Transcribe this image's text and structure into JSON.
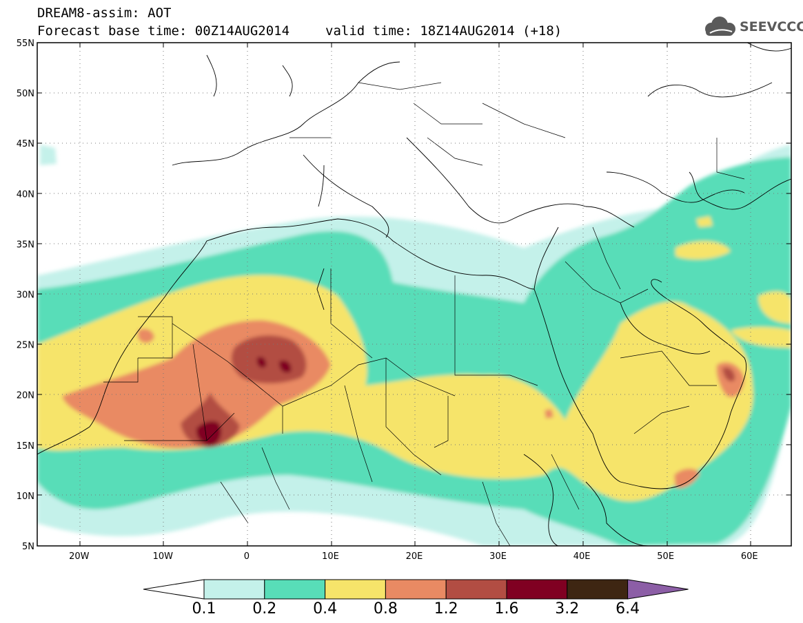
{
  "header": {
    "title_line1": "DREAM8-assim: AOT",
    "base_time": "Forecast base time: 00Z14AUG2014",
    "valid_time": "valid time: 18Z14AUG2014 (+18)",
    "logo_text": "SEEVCCC",
    "logo_icon": "cloud-icon"
  },
  "map": {
    "lon_range": [
      -25,
      65
    ],
    "lat_range": [
      5,
      55
    ],
    "lat_ticks": [
      "55N",
      "50N",
      "45N",
      "40N",
      "35N",
      "30N",
      "25N",
      "20N",
      "15N",
      "10N",
      "5N"
    ],
    "lon_ticks": [
      "20W",
      "10W",
      "0",
      "10E",
      "20E",
      "30E",
      "40E",
      "50E",
      "60E"
    ],
    "grid": "dotted"
  },
  "colorbar": {
    "labels": [
      "0.1",
      "0.2",
      "0.4",
      "0.8",
      "1.2",
      "1.6",
      "3.2",
      "6.4"
    ],
    "colors": [
      "#ffffff",
      "#c4f1ea",
      "#58ddb8",
      "#f6e46a",
      "#e98a63",
      "#b24d43",
      "#800022",
      "#3e2612",
      "#8c5ea6"
    ]
  }
}
